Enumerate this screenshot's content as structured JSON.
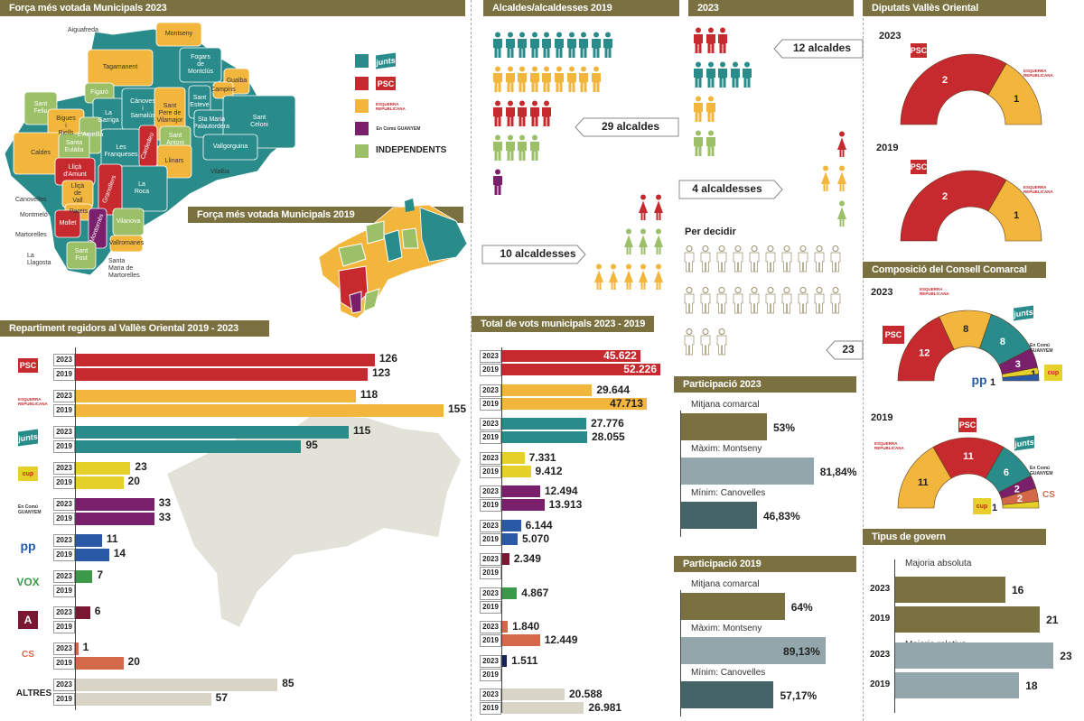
{
  "colors": {
    "psc": "#c62a2f",
    "erc": "#f2b63c",
    "junts": "#2a8b8b",
    "cup": "#e6d12a",
    "comu": "#7a1f6c",
    "pp": "#2a5aa6",
    "vox": "#3b9a4a",
    "aliança": "#7a1733",
    "cs": "#d4694a",
    "altres": "#d8d4c6",
    "navy": "#13205c",
    "indep": "#9cc067",
    "header": "#7b7140",
    "part_avg": "#7b7140",
    "part_max": "#93a6ac",
    "part_min": "#456468"
  },
  "logos": {
    "psc": "PSC",
    "erc": "ESQUERRA REPUBLICANA",
    "junts": "junts",
    "cup": "cup",
    "comu": "En Comú GUANYEM",
    "pp": "pp",
    "vox": "VOX",
    "aliança": "A",
    "cs": "CS",
    "altres": "ALTRES"
  },
  "map2023": {
    "title": "Força més votada Municipals 2023",
    "legend": [
      {
        "party": "junts",
        "label": "junts"
      },
      {
        "party": "psc",
        "label": "PSC"
      },
      {
        "party": "erc",
        "label": "ESQUERRA REPUBLICANA"
      },
      {
        "party": "comu",
        "label": "En Comú GUANYEM"
      },
      {
        "party": "indep",
        "label": "INDEPENDENTS"
      }
    ],
    "municipalities": [
      {
        "name": "Tagamanent",
        "party": "erc"
      },
      {
        "name": "Montseny",
        "party": "erc"
      },
      {
        "name": "Fogars de\nMontclús",
        "party": "junts"
      },
      {
        "name": "Gualba",
        "party": "erc"
      },
      {
        "name": "Campins",
        "party": "erc"
      },
      {
        "name": "Figaró",
        "party": "indep"
      },
      {
        "name": "Sant\nFeliu",
        "party": "indep"
      },
      {
        "name": "Bigues i\nRiells",
        "party": "erc"
      },
      {
        "name": "La\nGarriga",
        "party": "junts"
      },
      {
        "name": "Cànoves i\nSamalús",
        "party": "junts"
      },
      {
        "name": "Sant\nPere de\nVilamajor",
        "party": "erc"
      },
      {
        "name": "Sant\nEsteve",
        "party": "junts"
      },
      {
        "name": "Sta Maria\nPalautordera",
        "party": "junts"
      },
      {
        "name": "Sant Celoni",
        "party": "junts"
      },
      {
        "name": "L'Ametlla",
        "party": "indep"
      },
      {
        "name": "Caldes",
        "party": "erc"
      },
      {
        "name": "Santa\nEulàlia",
        "party": "indep"
      },
      {
        "name": "Les\nFranqueses",
        "party": "junts"
      },
      {
        "name": "Cardedeu",
        "party": "psc"
      },
      {
        "name": "Sant\nAntoni",
        "party": "indep"
      },
      {
        "name": "Vallgorguina",
        "party": "junts"
      },
      {
        "name": "Llinars",
        "party": "erc"
      },
      {
        "name": "Lliçà\nd'Amunt",
        "party": "psc"
      },
      {
        "name": "La Roca",
        "party": "junts"
      },
      {
        "name": "Lliçà\nde Vall",
        "party": "erc"
      },
      {
        "name": "Granollers",
        "party": "psc"
      },
      {
        "name": "Parets",
        "party": "erc"
      },
      {
        "name": "Mollet",
        "party": "psc"
      },
      {
        "name": "Montornès",
        "party": "comu"
      },
      {
        "name": "Vilanova",
        "party": "indep"
      },
      {
        "name": "Vallromanes",
        "party": "erc"
      },
      {
        "name": "Sant\nFost",
        "party": "indep"
      }
    ],
    "outside_labels": [
      "Aiguafreda",
      "Vilalba",
      "Canovelles",
      "Montmeló",
      "Martorelles",
      "La Llagosta",
      "Santa Maria de\nMartorelles"
    ]
  },
  "map2019": {
    "title": "Força més votada Municipals 2019"
  },
  "mayors": {
    "title_2019": "Alcaldes/alcaldesses  2019",
    "title_2023": "2023",
    "men_2019": [
      {
        "party": "junts",
        "count": 10
      },
      {
        "party": "erc",
        "count": 9
      },
      {
        "party": "psc",
        "count": 5
      },
      {
        "party": "indep",
        "count": 4
      },
      {
        "party": "comu",
        "count": 1
      }
    ],
    "women_2019": [
      {
        "party": "psc",
        "count": 2
      },
      {
        "party": "indep",
        "count": 3
      },
      {
        "party": "erc",
        "count": 5
      }
    ],
    "men_2023": [
      {
        "party": "psc",
        "count": 3
      },
      {
        "party": "junts",
        "count": 5
      },
      {
        "party": "erc",
        "count": 2
      },
      {
        "party": "indep",
        "count": 2
      }
    ],
    "women_2023": [
      {
        "party": "psc",
        "count": 1
      },
      {
        "party": "erc",
        "count": 2
      },
      {
        "party": "indep",
        "count": 1
      }
    ],
    "undecided_count": 23,
    "callout_29": "29 alcaldes",
    "callout_10": "10 alcaldesses",
    "callout_12": "12 alcaldes",
    "callout_4": "4 alcaldesses",
    "undecided_label": "Per decidir",
    "callout_23": "23"
  },
  "chart_data": [
    {
      "type": "bar",
      "title": "Repartiment regidors al Vallès Oriental 2019 - 2023",
      "orientation": "horizontal",
      "categories": [
        "psc",
        "erc",
        "junts",
        "cup",
        "comu",
        "pp",
        "vox",
        "aliança",
        "cs",
        "altres"
      ],
      "series": [
        {
          "name": "2023",
          "values": [
            126,
            118,
            115,
            23,
            33,
            11,
            7,
            6,
            1,
            85
          ]
        },
        {
          "name": "2019",
          "values": [
            123,
            155,
            95,
            20,
            33,
            14,
            null,
            null,
            20,
            57
          ]
        }
      ],
      "xlim": [
        0,
        155
      ]
    },
    {
      "type": "bar",
      "title": "Total de vots municipals 2023 - 2019",
      "orientation": "horizontal",
      "categories": [
        "psc",
        "erc",
        "junts",
        "cup",
        "comu",
        "pp",
        "aliança",
        "vox",
        "cs",
        "navy",
        "altres"
      ],
      "series": [
        {
          "name": "2023",
          "values": [
            45622,
            29644,
            27776,
            7331,
            12494,
            6144,
            2349,
            4867,
            1840,
            1511,
            20588
          ],
          "labels": [
            "45.622",
            "29.644",
            "27.776",
            "7.331",
            "12.494",
            "6.144",
            "2.349",
            "4.867",
            "1.840",
            "1.511",
            "20.588"
          ]
        },
        {
          "name": "2019",
          "values": [
            52226,
            47713,
            28055,
            9412,
            13913,
            5070,
            null,
            null,
            12449,
            null,
            26981
          ],
          "labels": [
            "52.226",
            "47.713",
            "28.055",
            "9.412",
            "13.913",
            "5.070",
            "",
            "",
            "12.449",
            "",
            "26.981"
          ]
        }
      ],
      "xlim": [
        0,
        52226
      ]
    },
    {
      "type": "bar",
      "title": "Participació 2023",
      "categories": [
        "Mitjana comarcal",
        "Màxim: Montseny",
        "Mínim: Canovelles"
      ],
      "values": [
        53,
        81.84,
        46.83
      ],
      "labels": [
        "53%",
        "81,84%",
        "46,83%"
      ],
      "xlim": [
        0,
        100
      ]
    },
    {
      "type": "bar",
      "title": "Participació 2019",
      "categories": [
        "Mitjana comarcal",
        "Màxim: Montseny",
        "Mínim: Canovelles"
      ],
      "values": [
        64,
        89.13,
        57.17
      ],
      "labels": [
        "64%",
        "89,13%",
        "57,17%"
      ],
      "xlim": [
        0,
        100
      ]
    },
    {
      "type": "pie",
      "subtype": "semicircle",
      "title": "Diputats Vallès Oriental",
      "year": "2023",
      "slices": [
        {
          "party": "psc",
          "value": 2
        },
        {
          "party": "erc",
          "value": 1
        }
      ]
    },
    {
      "type": "pie",
      "subtype": "semicircle",
      "year": "2019",
      "slices": [
        {
          "party": "psc",
          "value": 2
        },
        {
          "party": "erc",
          "value": 1
        }
      ]
    },
    {
      "type": "pie",
      "subtype": "semicircle",
      "title": "Composició del Consell Comarcal",
      "year": "2023",
      "slices": [
        {
          "party": "psc",
          "value": 12
        },
        {
          "party": "erc",
          "value": 8
        },
        {
          "party": "junts",
          "value": 8
        },
        {
          "party": "comu",
          "value": 3
        },
        {
          "party": "cup",
          "value": 1
        },
        {
          "party": "pp",
          "value": 1
        }
      ]
    },
    {
      "type": "pie",
      "subtype": "semicircle",
      "year": "2019",
      "slices": [
        {
          "party": "erc",
          "value": 11
        },
        {
          "party": "psc",
          "value": 11
        },
        {
          "party": "junts",
          "value": 6
        },
        {
          "party": "comu",
          "value": 2
        },
        {
          "party": "cs",
          "value": 2
        },
        {
          "party": "cup",
          "value": 1
        }
      ]
    },
    {
      "type": "bar",
      "title": "Tipus de govern",
      "groups": [
        {
          "label": "Majoria absoluta",
          "values": [
            {
              "year": "2023",
              "value": 16
            },
            {
              "year": "2019",
              "value": 21
            }
          ]
        },
        {
          "label": "Majoria relativa",
          "values": [
            {
              "year": "2023",
              "value": 23
            },
            {
              "year": "2019",
              "value": 18
            }
          ]
        }
      ],
      "xlim": [
        0,
        23
      ]
    }
  ]
}
